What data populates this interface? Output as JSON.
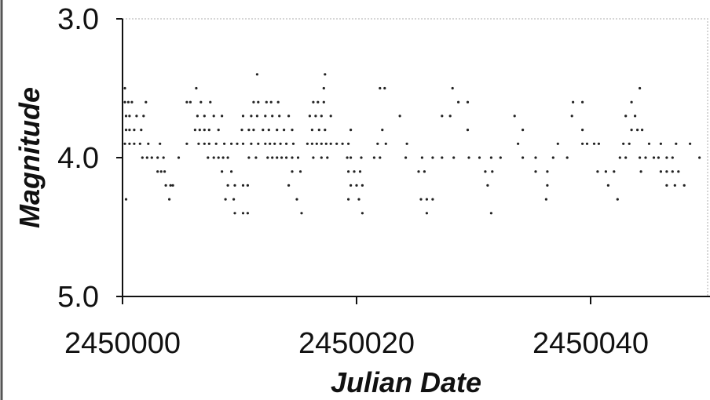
{
  "chart_data": {
    "type": "scatter",
    "title": "",
    "xlabel": "Julian Date",
    "ylabel": "Magnitude",
    "xlim": [
      2450000,
      2450050
    ],
    "ylim": [
      5.0,
      3.0
    ],
    "y_inverted": true,
    "grid": false,
    "legend": "none",
    "marker_color": "#222222",
    "x_ticks": [
      "2450000",
      "2450020",
      "2450040"
    ],
    "y_ticks": [
      "3.0",
      "4.0",
      "5.0"
    ],
    "series": [
      {
        "points": [
          [
            2450000.2,
            3.5
          ],
          [
            2450000.2,
            3.6
          ],
          [
            2450000.5,
            3.6
          ],
          [
            2450000.8,
            3.6
          ],
          [
            2450002.0,
            3.6
          ],
          [
            2450000.3,
            3.7
          ],
          [
            2450000.6,
            3.7
          ],
          [
            2450001.2,
            3.7
          ],
          [
            2450001.8,
            3.7
          ],
          [
            2450000.3,
            3.8
          ],
          [
            2450000.6,
            3.8
          ],
          [
            2450001.0,
            3.8
          ],
          [
            2450001.6,
            3.8
          ],
          [
            2450000.2,
            3.9
          ],
          [
            2450000.6,
            3.9
          ],
          [
            2450001.0,
            3.9
          ],
          [
            2450001.5,
            3.9
          ],
          [
            2450002.2,
            3.9
          ],
          [
            2450003.2,
            3.9
          ],
          [
            2450001.7,
            4.0
          ],
          [
            2450002.1,
            4.0
          ],
          [
            2450002.5,
            4.0
          ],
          [
            2450003.0,
            4.0
          ],
          [
            2450003.5,
            4.0
          ],
          [
            2450004.8,
            4.0
          ],
          [
            2450003.0,
            4.1
          ],
          [
            2450003.3,
            4.1
          ],
          [
            2450003.6,
            4.1
          ],
          [
            2450003.7,
            4.2
          ],
          [
            2450004.1,
            4.2
          ],
          [
            2450004.3,
            4.2
          ],
          [
            2450000.3,
            4.3
          ],
          [
            2450004.0,
            4.3
          ],
          [
            2450006.3,
            3.5
          ],
          [
            2450005.5,
            3.6
          ],
          [
            2450005.8,
            3.6
          ],
          [
            2450006.7,
            3.6
          ],
          [
            2450007.5,
            3.6
          ],
          [
            2450006.4,
            3.7
          ],
          [
            2450007.0,
            3.7
          ],
          [
            2450007.8,
            3.7
          ],
          [
            2450008.5,
            3.7
          ],
          [
            2450006.2,
            3.8
          ],
          [
            2450006.6,
            3.8
          ],
          [
            2450007.0,
            3.8
          ],
          [
            2450007.4,
            3.8
          ],
          [
            2450008.2,
            3.8
          ],
          [
            2450005.5,
            3.9
          ],
          [
            2450006.5,
            3.9
          ],
          [
            2450007.0,
            3.9
          ],
          [
            2450007.4,
            3.9
          ],
          [
            2450008.0,
            3.9
          ],
          [
            2450008.7,
            3.9
          ],
          [
            2450009.3,
            3.9
          ],
          [
            2450007.3,
            4.0
          ],
          [
            2450007.8,
            4.0
          ],
          [
            2450008.2,
            4.0
          ],
          [
            2450008.6,
            4.0
          ],
          [
            2450009.0,
            4.0
          ],
          [
            2450008.5,
            4.1
          ],
          [
            2450009.3,
            4.1
          ],
          [
            2450009.0,
            4.2
          ],
          [
            2450009.6,
            4.2
          ],
          [
            2450010.3,
            4.2
          ],
          [
            2450010.7,
            4.2
          ],
          [
            2450008.8,
            4.3
          ],
          [
            2450009.5,
            4.3
          ],
          [
            2450009.6,
            4.4
          ],
          [
            2450010.3,
            4.4
          ],
          [
            2450010.7,
            4.4
          ],
          [
            2450011.5,
            3.4
          ],
          [
            2450011.2,
            3.6
          ],
          [
            2450011.6,
            3.6
          ],
          [
            2450012.3,
            3.6
          ],
          [
            2450012.7,
            3.6
          ],
          [
            2450013.3,
            3.6
          ],
          [
            2450010.3,
            3.7
          ],
          [
            2450011.0,
            3.7
          ],
          [
            2450011.5,
            3.7
          ],
          [
            2450012.2,
            3.7
          ],
          [
            2450012.8,
            3.7
          ],
          [
            2450013.4,
            3.7
          ],
          [
            2450014.2,
            3.7
          ],
          [
            2450010.2,
            3.8
          ],
          [
            2450010.8,
            3.8
          ],
          [
            2450011.2,
            3.8
          ],
          [
            2450012.0,
            3.8
          ],
          [
            2450012.5,
            3.8
          ],
          [
            2450013.2,
            3.8
          ],
          [
            2450013.8,
            3.8
          ],
          [
            2450014.5,
            3.8
          ],
          [
            2450009.8,
            3.9
          ],
          [
            2450010.3,
            3.9
          ],
          [
            2450011.0,
            3.9
          ],
          [
            2450011.6,
            3.9
          ],
          [
            2450012.2,
            3.9
          ],
          [
            2450012.6,
            3.9
          ],
          [
            2450013.0,
            3.9
          ],
          [
            2450013.5,
            3.9
          ],
          [
            2450014.0,
            3.9
          ],
          [
            2450014.6,
            3.9
          ],
          [
            2450010.8,
            4.0
          ],
          [
            2450011.4,
            4.0
          ],
          [
            2450012.4,
            4.0
          ],
          [
            2450012.8,
            4.0
          ],
          [
            2450013.2,
            4.0
          ],
          [
            2450013.6,
            4.0
          ],
          [
            2450014.0,
            4.0
          ],
          [
            2450014.5,
            4.0
          ],
          [
            2450015.0,
            4.0
          ],
          [
            2450014.5,
            4.1
          ],
          [
            2450015.2,
            4.1
          ],
          [
            2450014.2,
            4.2
          ],
          [
            2450014.9,
            4.3
          ],
          [
            2450015.3,
            4.4
          ],
          [
            2450017.3,
            3.4
          ],
          [
            2450017.2,
            3.5
          ],
          [
            2450016.3,
            3.6
          ],
          [
            2450016.7,
            3.6
          ],
          [
            2450017.2,
            3.6
          ],
          [
            2450016.0,
            3.7
          ],
          [
            2450016.5,
            3.7
          ],
          [
            2450017.0,
            3.7
          ],
          [
            2450017.8,
            3.7
          ],
          [
            2450016.2,
            3.8
          ],
          [
            2450016.8,
            3.8
          ],
          [
            2450017.3,
            3.8
          ],
          [
            2450019.5,
            3.8
          ],
          [
            2450015.8,
            3.9
          ],
          [
            2450016.2,
            3.9
          ],
          [
            2450016.6,
            3.9
          ],
          [
            2450017.0,
            3.9
          ],
          [
            2450017.4,
            3.9
          ],
          [
            2450017.8,
            3.9
          ],
          [
            2450018.3,
            3.9
          ],
          [
            2450018.8,
            3.9
          ],
          [
            2450019.3,
            3.9
          ],
          [
            2450016.3,
            4.0
          ],
          [
            2450017.0,
            4.0
          ],
          [
            2450017.5,
            4.0
          ],
          [
            2450019.2,
            4.0
          ],
          [
            2450019.5,
            4.0
          ],
          [
            2450020.4,
            4.0
          ],
          [
            2450019.3,
            4.1
          ],
          [
            2450019.8,
            4.1
          ],
          [
            2450020.3,
            4.1
          ],
          [
            2450019.5,
            4.2
          ],
          [
            2450020.0,
            4.2
          ],
          [
            2450020.5,
            4.2
          ],
          [
            2450019.3,
            4.3
          ],
          [
            2450020.2,
            4.3
          ],
          [
            2450020.5,
            4.4
          ],
          [
            2450022.0,
            3.5
          ],
          [
            2450022.4,
            3.5
          ],
          [
            2450023.7,
            3.7
          ],
          [
            2450022.2,
            3.8
          ],
          [
            2450021.8,
            3.9
          ],
          [
            2450022.5,
            3.9
          ],
          [
            2450024.3,
            3.9
          ],
          [
            2450021.5,
            4.0
          ],
          [
            2450022.0,
            4.0
          ],
          [
            2450024.2,
            4.0
          ],
          [
            2450025.6,
            4.0
          ],
          [
            2450026.5,
            4.0
          ],
          [
            2450027.3,
            4.0
          ],
          [
            2450028.3,
            4.0
          ],
          [
            2450025.3,
            4.1
          ],
          [
            2450025.8,
            4.1
          ],
          [
            2450025.5,
            4.3
          ],
          [
            2450026.0,
            4.3
          ],
          [
            2450026.5,
            4.3
          ],
          [
            2450026.0,
            4.4
          ],
          [
            2450028.2,
            3.5
          ],
          [
            2450028.7,
            3.6
          ],
          [
            2450029.5,
            3.6
          ],
          [
            2450027.3,
            3.7
          ],
          [
            2450028.0,
            3.7
          ],
          [
            2450029.5,
            3.8
          ],
          [
            2450029.6,
            4.0
          ],
          [
            2450030.5,
            4.0
          ],
          [
            2450031.5,
            4.0
          ],
          [
            2450032.3,
            4.0
          ],
          [
            2450031.0,
            4.1
          ],
          [
            2450031.6,
            4.1
          ],
          [
            2450031.2,
            4.2
          ],
          [
            2450031.5,
            4.4
          ],
          [
            2450033.5,
            3.7
          ],
          [
            2450034.2,
            3.8
          ],
          [
            2450033.8,
            3.9
          ],
          [
            2450034.2,
            4.0
          ],
          [
            2450035.3,
            4.0
          ],
          [
            2450036.8,
            4.0
          ],
          [
            2450035.3,
            4.1
          ],
          [
            2450036.3,
            4.1
          ],
          [
            2450036.3,
            4.2
          ],
          [
            2450036.2,
            4.3
          ],
          [
            2450037.2,
            3.9
          ],
          [
            2450038.0,
            4.0
          ],
          [
            2450038.5,
            3.6
          ],
          [
            2450039.3,
            3.6
          ],
          [
            2450038.4,
            3.7
          ],
          [
            2450039.3,
            3.8
          ],
          [
            2450039.3,
            3.9
          ],
          [
            2450039.7,
            3.9
          ],
          [
            2450040.3,
            3.9
          ],
          [
            2450040.7,
            3.9
          ],
          [
            2450040.6,
            4.1
          ],
          [
            2450041.3,
            4.1
          ],
          [
            2450042.0,
            4.1
          ],
          [
            2450041.5,
            4.2
          ],
          [
            2450042.3,
            4.3
          ],
          [
            2450044.2,
            3.5
          ],
          [
            2450043.5,
            3.6
          ],
          [
            2450043.0,
            3.7
          ],
          [
            2450043.8,
            3.7
          ],
          [
            2450043.5,
            3.8
          ],
          [
            2450044.0,
            3.8
          ],
          [
            2450044.4,
            3.8
          ],
          [
            2450042.8,
            3.9
          ],
          [
            2450043.3,
            3.9
          ],
          [
            2450042.5,
            4.0
          ],
          [
            2450043.0,
            4.0
          ],
          [
            2450044.2,
            4.0
          ],
          [
            2450044.7,
            4.0
          ],
          [
            2450046.5,
            4.0
          ],
          [
            2450044.3,
            4.1
          ],
          [
            2450045.0,
            3.9
          ],
          [
            2450046.0,
            3.9
          ],
          [
            2450047.3,
            3.9
          ],
          [
            2450048.5,
            3.9
          ],
          [
            2450045.4,
            4.0
          ],
          [
            2450045.8,
            4.0
          ],
          [
            2450047.0,
            4.0
          ],
          [
            2450046.0,
            4.1
          ],
          [
            2450046.5,
            4.1
          ],
          [
            2450047.0,
            4.1
          ],
          [
            2450047.5,
            4.1
          ],
          [
            2450046.5,
            4.2
          ],
          [
            2450047.2,
            4.2
          ],
          [
            2450048.0,
            4.2
          ],
          [
            2450049.3,
            4.0
          ]
        ]
      }
    ]
  }
}
